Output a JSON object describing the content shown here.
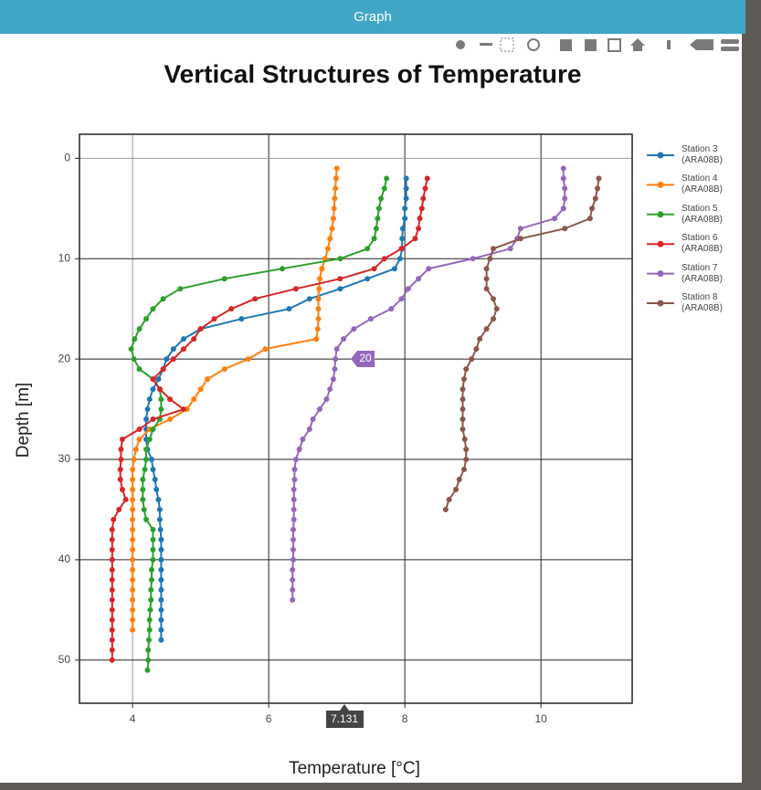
{
  "window_title": "Graph",
  "chart_data": {
    "type": "line",
    "title": "Vertical Structures of Temperature",
    "x_label": "Temperature [°C]",
    "y_label": "Depth [m]",
    "xlim": [
      3.22,
      11.34
    ],
    "xticks": [
      4,
      6,
      8,
      10
    ],
    "ylim": [
      54.3,
      -2.4
    ],
    "yticks": [
      0,
      10,
      20,
      30,
      40,
      50
    ],
    "grid": true,
    "legend": "right",
    "annotations": [
      "20",
      "7.131"
    ],
    "series": [
      {
        "name": "Station 3 (ARA08B)",
        "color": "#1f77b4",
        "x": [
          8.02,
          8.02,
          8.02,
          8.0,
          8.0,
          7.97,
          7.96,
          7.96,
          7.93,
          7.85,
          7.45,
          7.05,
          6.6,
          6.3,
          5.6,
          5.0,
          4.75,
          4.6,
          4.5,
          4.45,
          4.38,
          4.3,
          4.25,
          4.22,
          4.2,
          4.2,
          4.2,
          4.22,
          4.28,
          4.3,
          4.33,
          4.35,
          4.38,
          4.4,
          4.4,
          4.41,
          4.42,
          4.42,
          4.42,
          4.42,
          4.42,
          4.42,
          4.42,
          4.42,
          4.42,
          4.42,
          4.42
        ],
        "y": [
          2,
          3,
          4,
          5,
          6,
          7,
          8,
          9,
          10,
          11,
          12,
          13,
          14,
          15,
          16,
          17,
          18,
          19,
          20,
          21,
          22,
          23,
          24,
          25,
          26,
          27,
          28,
          29,
          30,
          31,
          32,
          33,
          34,
          35,
          36,
          37,
          38,
          39,
          40,
          41,
          42,
          43,
          44,
          45,
          46,
          47,
          48
        ]
      },
      {
        "name": "Station 4 (ARA08B)",
        "color": "#ff7f0e",
        "x": [
          7.0,
          6.99,
          6.98,
          6.97,
          6.96,
          6.95,
          6.93,
          6.9,
          6.87,
          6.83,
          6.78,
          6.75,
          6.74,
          6.73,
          6.73,
          6.73,
          6.72,
          6.7,
          5.95,
          5.7,
          5.35,
          5.1,
          5.0,
          4.9,
          4.8,
          4.55,
          4.25,
          4.1,
          4.05,
          4.02,
          4.0,
          4.0,
          4.0,
          4.0,
          4.0,
          4.0,
          4.0,
          4.0,
          4.0,
          4.0,
          4.0,
          4.0,
          4.0,
          4.0,
          4.0,
          4.0,
          4.0
        ],
        "y": [
          1,
          2,
          3,
          4,
          5,
          6,
          7,
          8,
          9,
          10,
          11,
          12,
          13,
          14,
          15,
          16,
          17,
          18,
          19,
          20,
          21,
          22,
          23,
          24,
          25,
          26,
          27,
          28,
          29,
          30,
          31,
          32,
          33,
          34,
          35,
          36,
          37,
          38,
          39,
          40,
          41,
          42,
          43,
          44,
          45,
          46,
          47
        ]
      },
      {
        "name": "Station 5 (ARA08B)",
        "color": "#2ca02c",
        "x": [
          7.73,
          7.7,
          7.65,
          7.62,
          7.6,
          7.58,
          7.55,
          7.45,
          7.05,
          6.2,
          5.35,
          4.7,
          4.45,
          4.3,
          4.2,
          4.1,
          4.03,
          3.98,
          4.02,
          4.1,
          4.3,
          4.4,
          4.42,
          4.42,
          4.4,
          4.3,
          4.25,
          4.2,
          4.2,
          4.18,
          4.15,
          4.15,
          4.15,
          4.17,
          4.2,
          4.3,
          4.3,
          4.3,
          4.3,
          4.28,
          4.28,
          4.27,
          4.27,
          4.26,
          4.25,
          4.25,
          4.24,
          4.23,
          4.23,
          4.22
        ],
        "y": [
          2,
          3,
          4,
          5,
          6,
          7,
          8,
          9,
          10,
          11,
          12,
          13,
          14,
          15,
          16,
          17,
          18,
          19,
          20,
          21,
          22,
          23,
          24,
          25,
          26,
          27,
          28,
          29,
          30,
          31,
          32,
          33,
          34,
          35,
          36,
          37,
          38,
          39,
          40,
          41,
          42,
          43,
          44,
          45,
          46,
          47,
          48,
          49,
          50,
          51
        ]
      },
      {
        "name": "Station 6 (ARA08B)",
        "color": "#d62728",
        "x": [
          8.33,
          8.3,
          8.27,
          8.25,
          8.22,
          8.2,
          8.15,
          7.95,
          7.7,
          7.55,
          7.05,
          6.4,
          5.8,
          5.45,
          5.2,
          5.0,
          4.9,
          4.75,
          4.6,
          4.45,
          4.3,
          4.4,
          4.55,
          4.75,
          4.3,
          4.1,
          3.85,
          3.83,
          3.83,
          3.82,
          3.82,
          3.85,
          3.9,
          3.8,
          3.72,
          3.7,
          3.7,
          3.7,
          3.7,
          3.7,
          3.7,
          3.7,
          3.7,
          3.7,
          3.7,
          3.7,
          3.7,
          3.7,
          3.7
        ],
        "y": [
          2,
          3,
          4,
          5,
          6,
          7,
          8,
          9,
          10,
          11,
          12,
          13,
          14,
          15,
          16,
          17,
          18,
          19,
          20,
          21,
          22,
          23,
          24,
          25,
          26,
          27,
          28,
          29,
          30,
          31,
          32,
          33,
          34,
          35,
          36,
          37,
          38,
          39,
          40,
          41,
          42,
          43,
          44,
          45,
          46,
          47,
          48,
          49,
          50
        ]
      },
      {
        "name": "Station 7 (ARA08B)",
        "color": "#9467bd",
        "x": [
          10.33,
          10.33,
          10.35,
          10.35,
          10.33,
          10.2,
          9.7,
          9.65,
          9.55,
          9.0,
          8.35,
          8.2,
          8.05,
          7.95,
          7.8,
          7.5,
          7.25,
          7.1,
          7.0,
          6.98,
          6.97,
          6.95,
          6.9,
          6.85,
          6.75,
          6.65,
          6.6,
          6.5,
          6.45,
          6.4,
          6.38,
          6.38,
          6.37,
          6.37,
          6.37,
          6.37,
          6.36,
          6.36,
          6.36,
          6.36,
          6.35,
          6.35,
          6.35,
          6.35
        ],
        "y": [
          1,
          2,
          3,
          4,
          5,
          6,
          7,
          8,
          9,
          10,
          11,
          12,
          13,
          14,
          15,
          16,
          17,
          18,
          19,
          20,
          21,
          22,
          23,
          24,
          25,
          26,
          27,
          28,
          29,
          30,
          31,
          32,
          33,
          34,
          35,
          36,
          37,
          38,
          39,
          40,
          41,
          42,
          43,
          44
        ]
      },
      {
        "name": "Station 8 (ARA08B)",
        "color": "#8c564b",
        "x": [
          10.85,
          10.83,
          10.8,
          10.75,
          10.72,
          10.35,
          9.7,
          9.3,
          9.25,
          9.2,
          9.2,
          9.2,
          9.3,
          9.35,
          9.3,
          9.2,
          9.1,
          9.05,
          8.98,
          8.9,
          8.87,
          8.85,
          8.85,
          8.85,
          8.85,
          8.85,
          8.88,
          8.9,
          8.9,
          8.87,
          8.8,
          8.75,
          8.65,
          8.6
        ],
        "y": [
          2,
          3,
          4,
          5,
          6,
          7,
          8,
          9,
          10,
          11,
          12,
          13,
          14,
          15,
          16,
          17,
          18,
          19,
          20,
          21,
          22,
          23,
          24,
          25,
          26,
          27,
          28,
          29,
          30,
          31,
          32,
          33,
          34,
          35
        ]
      }
    ]
  }
}
